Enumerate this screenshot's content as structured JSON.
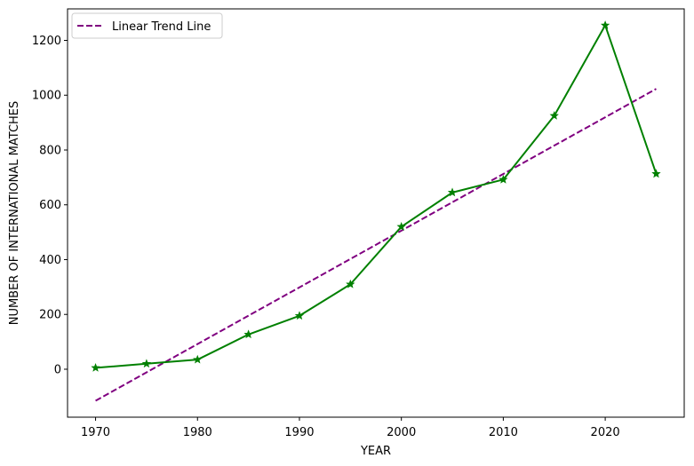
{
  "chart_data": {
    "type": "line",
    "title": "",
    "xlabel": "YEAR",
    "ylabel": "NUMBER OF INTERNATIONAL MATCHES",
    "xlim": [
      1967.25,
      2027.75
    ],
    "ylim": [
      -175,
      1315
    ],
    "xticks": [
      1970,
      1980,
      1990,
      2000,
      2010,
      2020
    ],
    "yticks": [
      0,
      200,
      400,
      600,
      800,
      1000,
      1200
    ],
    "grid": false,
    "legend_position": "top-left",
    "x": [
      1970,
      1975,
      1980,
      1985,
      1990,
      1995,
      2000,
      2005,
      2010,
      2015,
      2020,
      2025
    ],
    "series": [
      {
        "values": [
          5,
          20,
          35,
          127,
          195,
          310,
          520,
          645,
          692,
          925,
          1255,
          713
        ],
        "color": "#008000",
        "line_style": "solid",
        "marker": "star"
      },
      {
        "name": "Linear Trend Line",
        "start": [
          1970,
          -115
        ],
        "end": [
          2025,
          1023
        ],
        "color": "#800080",
        "line_style": "dashed"
      }
    ]
  }
}
